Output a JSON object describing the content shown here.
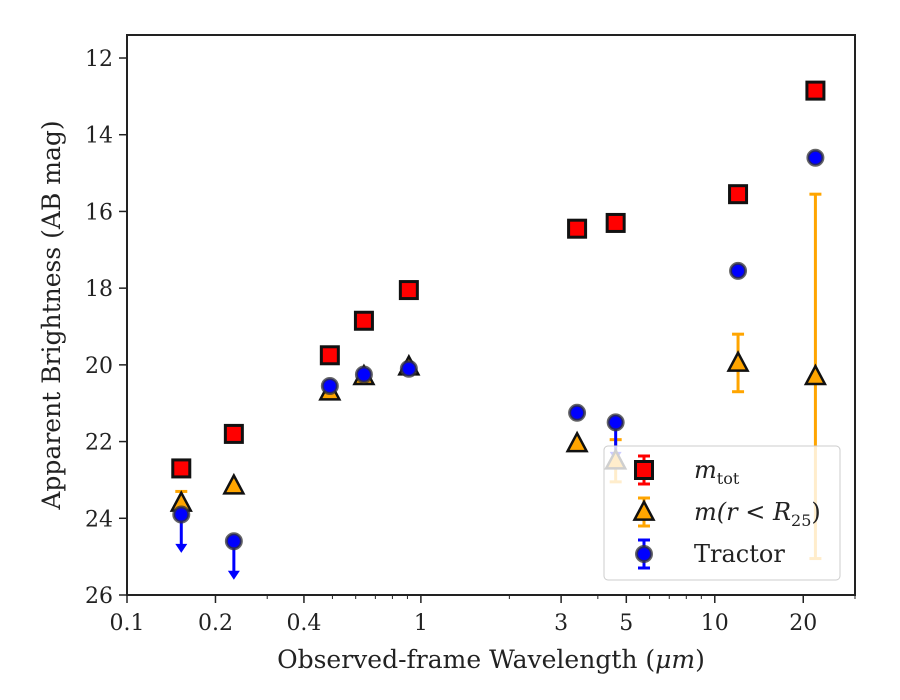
{
  "chart_data": {
    "type": "scatter",
    "x_scale": "log",
    "xlabel": "Observed-frame Wavelength (",
    "xlabel_unit": "μm",
    "xlabel_close": ")",
    "ylabel": "Apparent Brightness (AB mag)",
    "xlim": [
      0.1,
      30
    ],
    "ylim": [
      26,
      11.4
    ],
    "y_inverted": true,
    "x_ticks": [
      0.1,
      0.2,
      0.4,
      1,
      3,
      5,
      10,
      20
    ],
    "x_tick_labels": [
      "0.1",
      "0.2",
      "0.4",
      "1",
      "3",
      "5",
      "10",
      "20"
    ],
    "y_ticks": [
      12,
      14,
      16,
      18,
      20,
      22,
      24,
      26
    ],
    "y_tick_labels": [
      "12",
      "14",
      "16",
      "18",
      "20",
      "22",
      "24",
      "26"
    ],
    "legend_position": "bottom-right",
    "series": [
      {
        "name_main": "m",
        "name_sub": "tot",
        "marker": "square",
        "color": "#ff0000",
        "edge": "#111111",
        "errcolor": "#ff0000",
        "points": [
          {
            "x": 0.153,
            "y": 22.7
          },
          {
            "x": 0.231,
            "y": 21.8
          },
          {
            "x": 0.49,
            "y": 19.75
          },
          {
            "x": 0.64,
            "y": 18.85
          },
          {
            "x": 0.91,
            "y": 18.05
          },
          {
            "x": 3.4,
            "y": 16.45
          },
          {
            "x": 4.6,
            "y": 16.3
          },
          {
            "x": 12.0,
            "y": 15.55
          },
          {
            "x": 22.0,
            "y": 12.85
          }
        ]
      },
      {
        "name_main": "m(r < R",
        "name_sub": "25",
        "name_close": ")",
        "marker": "triangle",
        "color": "#ffa500",
        "edge": "#111111",
        "errcolor": "#ffa500",
        "points": [
          {
            "x": 0.153,
            "y": 23.6,
            "err": 0.3
          },
          {
            "x": 0.231,
            "y": 23.15
          },
          {
            "x": 0.49,
            "y": 20.7
          },
          {
            "x": 0.64,
            "y": 20.3
          },
          {
            "x": 0.91,
            "y": 20.05
          },
          {
            "x": 3.4,
            "y": 22.05
          },
          {
            "x": 4.6,
            "y": 22.5,
            "err": 0.55
          },
          {
            "x": 12.0,
            "y": 19.95,
            "err": 0.75
          },
          {
            "x": 22.0,
            "y": 20.3,
            "err_low": 4.75,
            "err_high": 4.75
          }
        ]
      },
      {
        "name_main": "Tractor",
        "marker": "circle",
        "color": "#0000ff",
        "edge": "#333333",
        "errcolor": "#0000ff",
        "points": [
          {
            "x": 0.153,
            "y": 23.9,
            "upper_limit": true
          },
          {
            "x": 0.231,
            "y": 24.6,
            "upper_limit": true
          },
          {
            "x": 0.49,
            "y": 20.55
          },
          {
            "x": 0.64,
            "y": 20.25
          },
          {
            "x": 0.91,
            "y": 20.1
          },
          {
            "x": 3.4,
            "y": 21.25
          },
          {
            "x": 4.6,
            "y": 21.5,
            "upper_limit": true
          },
          {
            "x": 12.0,
            "y": 17.55
          },
          {
            "x": 22.0,
            "y": 14.6
          }
        ]
      }
    ]
  }
}
